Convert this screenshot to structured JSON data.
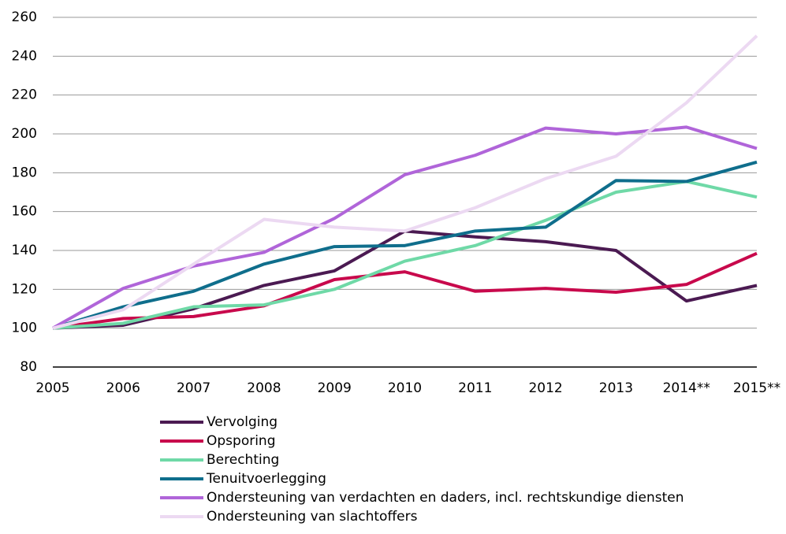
{
  "chart_data": {
    "type": "line",
    "categories": [
      "2005",
      "2006",
      "2007",
      "2008",
      "2009",
      "2010",
      "2011",
      "2012",
      "2013",
      "2014**",
      "2015**"
    ],
    "series": [
      {
        "name": "Vervolging",
        "color": "#4b1a52",
        "values": [
          100,
          101.5,
          110,
          122,
          129.5,
          150,
          147,
          144.5,
          140,
          114,
          122
        ]
      },
      {
        "name": "Opsporing",
        "color": "#c8094c",
        "values": [
          100,
          105,
          106,
          111.5,
          125,
          129,
          119,
          120.5,
          118.5,
          122.5,
          138.5
        ]
      },
      {
        "name": "Berechting",
        "color": "#6fd9a7",
        "values": [
          100,
          102.5,
          111,
          112,
          120,
          134.5,
          142.5,
          155.5,
          170,
          175.5,
          167.5
        ]
      },
      {
        "name": "Tenuitvoerlegging",
        "color": "#0f6e8c",
        "values": [
          100,
          111,
          119,
          133,
          142,
          142.5,
          150,
          152,
          176,
          175.5,
          185.5
        ]
      },
      {
        "name": "Ondersteuning van verdachten en daders, incl. rechtskundige diensten",
        "color": "#b065d9",
        "values": [
          100,
          120.5,
          132,
          139,
          156.5,
          179,
          189,
          203,
          200,
          203.5,
          192.5
        ]
      },
      {
        "name": "Ondersteuning van slachtoffers",
        "color": "#ecd9f2",
        "values": [
          100,
          109.5,
          133,
          156,
          152,
          150,
          162,
          177,
          188.5,
          216,
          250.5
        ]
      }
    ],
    "ylim": [
      80,
      260
    ],
    "yticks": [
      80,
      100,
      120,
      140,
      160,
      180,
      200,
      220,
      240,
      260
    ],
    "grid": true,
    "legend": "bottom"
  }
}
